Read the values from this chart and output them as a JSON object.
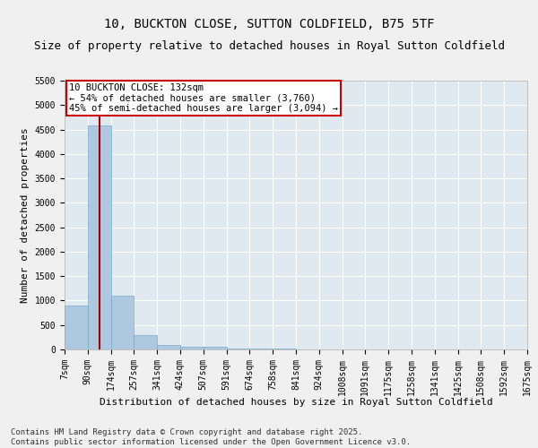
{
  "title": "10, BUCKTON CLOSE, SUTTON COLDFIELD, B75 5TF",
  "subtitle": "Size of property relative to detached houses in Royal Sutton Coldfield",
  "xlabel": "Distribution of detached houses by size in Royal Sutton Coldfield",
  "ylabel": "Number of detached properties",
  "bin_edges": [
    7,
    90,
    174,
    257,
    341,
    424,
    507,
    591,
    674,
    758,
    841,
    924,
    1008,
    1091,
    1175,
    1258,
    1341,
    1425,
    1508,
    1592,
    1675
  ],
  "bin_counts": [
    900,
    4580,
    1100,
    300,
    100,
    60,
    50,
    20,
    15,
    10,
    8,
    6,
    5,
    4,
    3,
    2,
    2,
    1,
    1,
    1
  ],
  "bar_color": "#aec8e0",
  "bar_edge_color": "#7aaac8",
  "property_size": 132,
  "vline_color": "#aa0000",
  "annotation_line1": "10 BUCKTON CLOSE: 132sqm",
  "annotation_line2": "← 54% of detached houses are smaller (3,760)",
  "annotation_line3": "45% of semi-detached houses are larger (3,094) →",
  "annotation_box_color": "#ffffff",
  "annotation_box_edge_color": "#cc0000",
  "ylim": [
    0,
    5500
  ],
  "yticks": [
    0,
    500,
    1000,
    1500,
    2000,
    2500,
    3000,
    3500,
    4000,
    4500,
    5000,
    5500
  ],
  "bg_color": "#e0e8f0",
  "fig_bg_color": "#f0f0f0",
  "footer_text": "Contains HM Land Registry data © Crown copyright and database right 2025.\nContains public sector information licensed under the Open Government Licence v3.0.",
  "title_fontsize": 10,
  "subtitle_fontsize": 9,
  "xlabel_fontsize": 8,
  "ylabel_fontsize": 8,
  "tick_label_size": 7,
  "annotation_fontsize": 7.5,
  "footer_fontsize": 6.5
}
